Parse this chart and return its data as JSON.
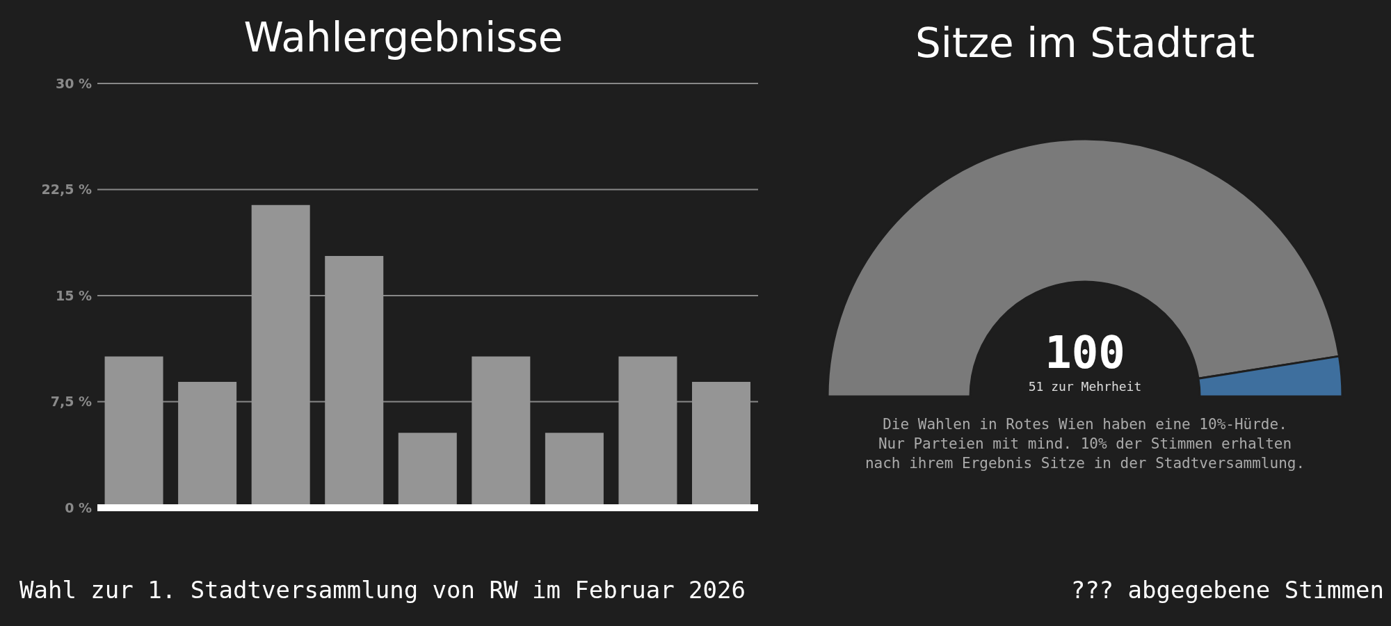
{
  "chart_data": [
    {
      "type": "bar",
      "title": "Wahlergebnisse",
      "categories": [
        null,
        null,
        null,
        null,
        null,
        null,
        null,
        null,
        null
      ],
      "values": [
        10.7,
        8.9,
        21.4,
        17.8,
        5.3,
        10.7,
        5.3,
        10.7,
        8.9
      ],
      "color": "#959595",
      "ylim": [
        0,
        30
      ],
      "yticks": [
        {
          "value": 0,
          "label": "0 %"
        },
        {
          "value": 7.5,
          "label": "7,5 %"
        },
        {
          "value": 15,
          "label": "15 %"
        },
        {
          "value": 22.5,
          "label": "22,5 %"
        },
        {
          "value": 30,
          "label": "30 %"
        }
      ],
      "grid": "y",
      "annotations": [
        "Wahl zur 1. Stadtversammlung von RW im Februar 2026"
      ]
    },
    {
      "type": "donut",
      "title": "Sitze im Stadtrat",
      "categories": [
        null,
        null
      ],
      "values": [
        95,
        5
      ],
      "colors": [
        "#7a7a7a",
        "#3e6f9e"
      ],
      "annotations": [
        "100",
        "51 zur Mehrheit",
        "Die Wahlen in Rotes Wien haben eine 10%-Hürde.",
        "Nur Parteien mit mind. 10% der Stimmen erhalten",
        "nach ihrem Ergebnis Sitze in der Stadtversammlung.",
        "??? abgegebene Stimmen"
      ]
    }
  ]
}
